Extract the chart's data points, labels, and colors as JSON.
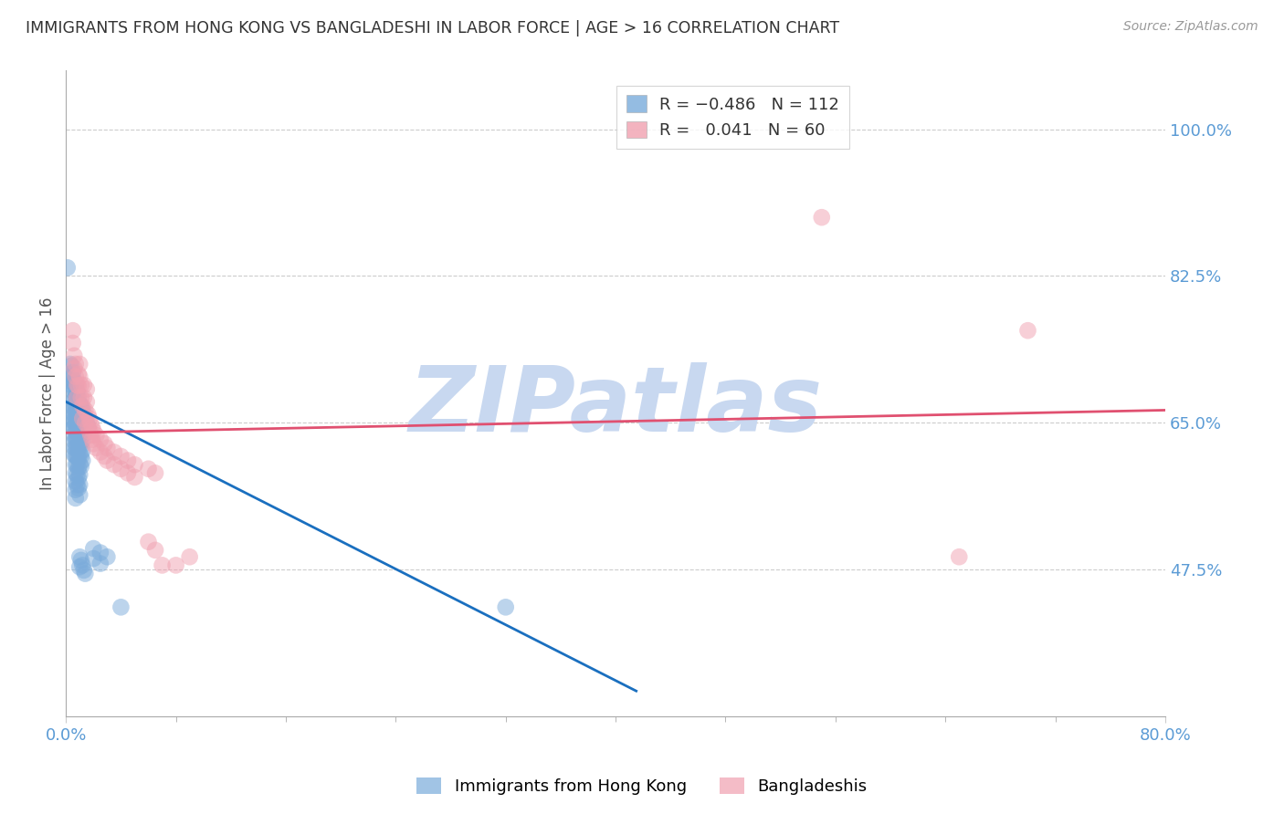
{
  "title": "IMMIGRANTS FROM HONG KONG VS BANGLADESHI IN LABOR FORCE | AGE > 16 CORRELATION CHART",
  "source": "Source: ZipAtlas.com",
  "ylabel": "In Labor Force | Age > 16",
  "xlabel_bottom_left": "0.0%",
  "xlabel_bottom_right": "80.0%",
  "ytick_labels": [
    "100.0%",
    "82.5%",
    "65.0%",
    "47.5%"
  ],
  "ytick_values": [
    1.0,
    0.825,
    0.65,
    0.475
  ],
  "xmin": 0.0,
  "xmax": 0.8,
  "ymin": 0.3,
  "ymax": 1.07,
  "legend_labels_bottom": [
    "Immigrants from Hong Kong",
    "Bangladeshis"
  ],
  "blue_color": "#7aabdb",
  "pink_color": "#f0a0b0",
  "blue_line_color": "#1a6fbf",
  "pink_line_color": "#e05070",
  "watermark": "ZIPatlas",
  "watermark_color": "#c8d8f0",
  "grid_color": "#cccccc",
  "title_color": "#333333",
  "axis_label_color": "#5b9bd5",
  "blue_scatter": [
    [
      0.001,
      0.835
    ],
    [
      0.003,
      0.72
    ],
    [
      0.003,
      0.708
    ],
    [
      0.004,
      0.718
    ],
    [
      0.004,
      0.705
    ],
    [
      0.004,
      0.695
    ],
    [
      0.005,
      0.71
    ],
    [
      0.005,
      0.698
    ],
    [
      0.005,
      0.688
    ],
    [
      0.005,
      0.675
    ],
    [
      0.005,
      0.668
    ],
    [
      0.005,
      0.66
    ],
    [
      0.005,
      0.652
    ],
    [
      0.005,
      0.644
    ],
    [
      0.006,
      0.7
    ],
    [
      0.006,
      0.69
    ],
    [
      0.006,
      0.678
    ],
    [
      0.006,
      0.668
    ],
    [
      0.006,
      0.66
    ],
    [
      0.006,
      0.652
    ],
    [
      0.006,
      0.644
    ],
    [
      0.006,
      0.635
    ],
    [
      0.006,
      0.628
    ],
    [
      0.006,
      0.62
    ],
    [
      0.006,
      0.612
    ],
    [
      0.007,
      0.695
    ],
    [
      0.007,
      0.683
    ],
    [
      0.007,
      0.672
    ],
    [
      0.007,
      0.661
    ],
    [
      0.007,
      0.65
    ],
    [
      0.007,
      0.64
    ],
    [
      0.007,
      0.63
    ],
    [
      0.007,
      0.62
    ],
    [
      0.007,
      0.61
    ],
    [
      0.007,
      0.6
    ],
    [
      0.007,
      0.59
    ],
    [
      0.007,
      0.58
    ],
    [
      0.007,
      0.57
    ],
    [
      0.007,
      0.56
    ],
    [
      0.008,
      0.688
    ],
    [
      0.008,
      0.676
    ],
    [
      0.008,
      0.665
    ],
    [
      0.008,
      0.654
    ],
    [
      0.008,
      0.643
    ],
    [
      0.008,
      0.632
    ],
    [
      0.008,
      0.621
    ],
    [
      0.008,
      0.61
    ],
    [
      0.008,
      0.6
    ],
    [
      0.008,
      0.588
    ],
    [
      0.008,
      0.576
    ],
    [
      0.009,
      0.68
    ],
    [
      0.009,
      0.668
    ],
    [
      0.009,
      0.656
    ],
    [
      0.009,
      0.644
    ],
    [
      0.009,
      0.632
    ],
    [
      0.009,
      0.62
    ],
    [
      0.009,
      0.608
    ],
    [
      0.009,
      0.596
    ],
    [
      0.009,
      0.584
    ],
    [
      0.009,
      0.572
    ],
    [
      0.01,
      0.672
    ],
    [
      0.01,
      0.66
    ],
    [
      0.01,
      0.648
    ],
    [
      0.01,
      0.636
    ],
    [
      0.01,
      0.624
    ],
    [
      0.01,
      0.612
    ],
    [
      0.01,
      0.6
    ],
    [
      0.01,
      0.588
    ],
    [
      0.01,
      0.576
    ],
    [
      0.01,
      0.564
    ],
    [
      0.01,
      0.49
    ],
    [
      0.01,
      0.478
    ],
    [
      0.011,
      0.67
    ],
    [
      0.011,
      0.658
    ],
    [
      0.011,
      0.646
    ],
    [
      0.011,
      0.634
    ],
    [
      0.011,
      0.622
    ],
    [
      0.011,
      0.61
    ],
    [
      0.011,
      0.598
    ],
    [
      0.011,
      0.486
    ],
    [
      0.012,
      0.665
    ],
    [
      0.012,
      0.653
    ],
    [
      0.012,
      0.641
    ],
    [
      0.012,
      0.629
    ],
    [
      0.012,
      0.617
    ],
    [
      0.012,
      0.605
    ],
    [
      0.012,
      0.48
    ],
    [
      0.013,
      0.66
    ],
    [
      0.013,
      0.648
    ],
    [
      0.013,
      0.636
    ],
    [
      0.013,
      0.474
    ],
    [
      0.014,
      0.655
    ],
    [
      0.014,
      0.47
    ],
    [
      0.015,
      0.65
    ],
    [
      0.016,
      0.645
    ],
    [
      0.02,
      0.5
    ],
    [
      0.02,
      0.488
    ],
    [
      0.025,
      0.495
    ],
    [
      0.025,
      0.482
    ],
    [
      0.03,
      0.49
    ],
    [
      0.04,
      0.43
    ],
    [
      0.32,
      0.43
    ]
  ],
  "pink_scatter": [
    [
      0.005,
      0.76
    ],
    [
      0.005,
      0.745
    ],
    [
      0.006,
      0.73
    ],
    [
      0.006,
      0.715
    ],
    [
      0.007,
      0.72
    ],
    [
      0.007,
      0.705
    ],
    [
      0.008,
      0.695
    ],
    [
      0.008,
      0.68
    ],
    [
      0.009,
      0.708
    ],
    [
      0.009,
      0.694
    ],
    [
      0.01,
      0.72
    ],
    [
      0.01,
      0.705
    ],
    [
      0.011,
      0.695
    ],
    [
      0.011,
      0.68
    ],
    [
      0.012,
      0.67
    ],
    [
      0.012,
      0.655
    ],
    [
      0.013,
      0.695
    ],
    [
      0.013,
      0.68
    ],
    [
      0.014,
      0.665
    ],
    [
      0.014,
      0.65
    ],
    [
      0.015,
      0.69
    ],
    [
      0.015,
      0.675
    ],
    [
      0.016,
      0.66
    ],
    [
      0.016,
      0.645
    ],
    [
      0.017,
      0.655
    ],
    [
      0.017,
      0.64
    ],
    [
      0.018,
      0.65
    ],
    [
      0.018,
      0.635
    ],
    [
      0.019,
      0.645
    ],
    [
      0.019,
      0.63
    ],
    [
      0.02,
      0.64
    ],
    [
      0.02,
      0.625
    ],
    [
      0.022,
      0.635
    ],
    [
      0.022,
      0.62
    ],
    [
      0.025,
      0.63
    ],
    [
      0.025,
      0.615
    ],
    [
      0.028,
      0.625
    ],
    [
      0.028,
      0.61
    ],
    [
      0.03,
      0.62
    ],
    [
      0.03,
      0.605
    ],
    [
      0.035,
      0.615
    ],
    [
      0.035,
      0.6
    ],
    [
      0.04,
      0.61
    ],
    [
      0.04,
      0.595
    ],
    [
      0.045,
      0.605
    ],
    [
      0.045,
      0.59
    ],
    [
      0.05,
      0.6
    ],
    [
      0.05,
      0.585
    ],
    [
      0.06,
      0.595
    ],
    [
      0.06,
      0.508
    ],
    [
      0.065,
      0.59
    ],
    [
      0.065,
      0.498
    ],
    [
      0.07,
      0.48
    ],
    [
      0.08,
      0.48
    ],
    [
      0.09,
      0.49
    ],
    [
      0.55,
      0.895
    ],
    [
      0.65,
      0.49
    ],
    [
      0.7,
      0.76
    ]
  ],
  "blue_trend_x": [
    0.0,
    0.415
  ],
  "blue_trend_y": [
    0.675,
    0.33
  ],
  "pink_trend_x": [
    0.0,
    0.8
  ],
  "pink_trend_y": [
    0.638,
    0.665
  ]
}
